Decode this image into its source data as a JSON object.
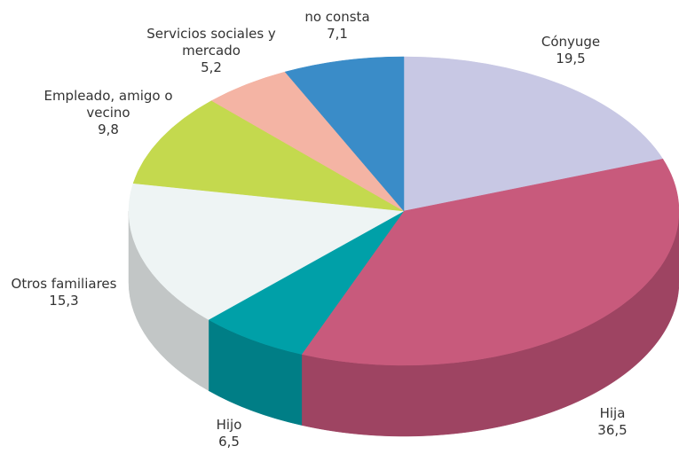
{
  "chart_data": {
    "type": "pie3d",
    "categories": [
      "Cónyuge",
      "Hija",
      "Hijo",
      "Otros familiares",
      "Empleado, amigo o vecino",
      "Servicios sociales y mercado",
      "no consta"
    ],
    "values": [
      19.5,
      36.5,
      6.5,
      15.3,
      9.8,
      5.2,
      7.1
    ],
    "value_labels": [
      "19,5",
      "36,5",
      "6,5",
      "15,3",
      "9,8",
      "5,2",
      "7,1"
    ],
    "colors": [
      "#c8c8e4",
      "#c85a7c",
      "#00a0a8",
      "#eef4f4",
      "#c4d94e",
      "#f4b4a4",
      "#3a8cc8"
    ],
    "side_colors": [
      "#a4a4c4",
      "#9e4462",
      "#007e86",
      "#c2c6c6",
      "#9cb03a",
      "#cc9080",
      "#2c6ca0"
    ]
  }
}
